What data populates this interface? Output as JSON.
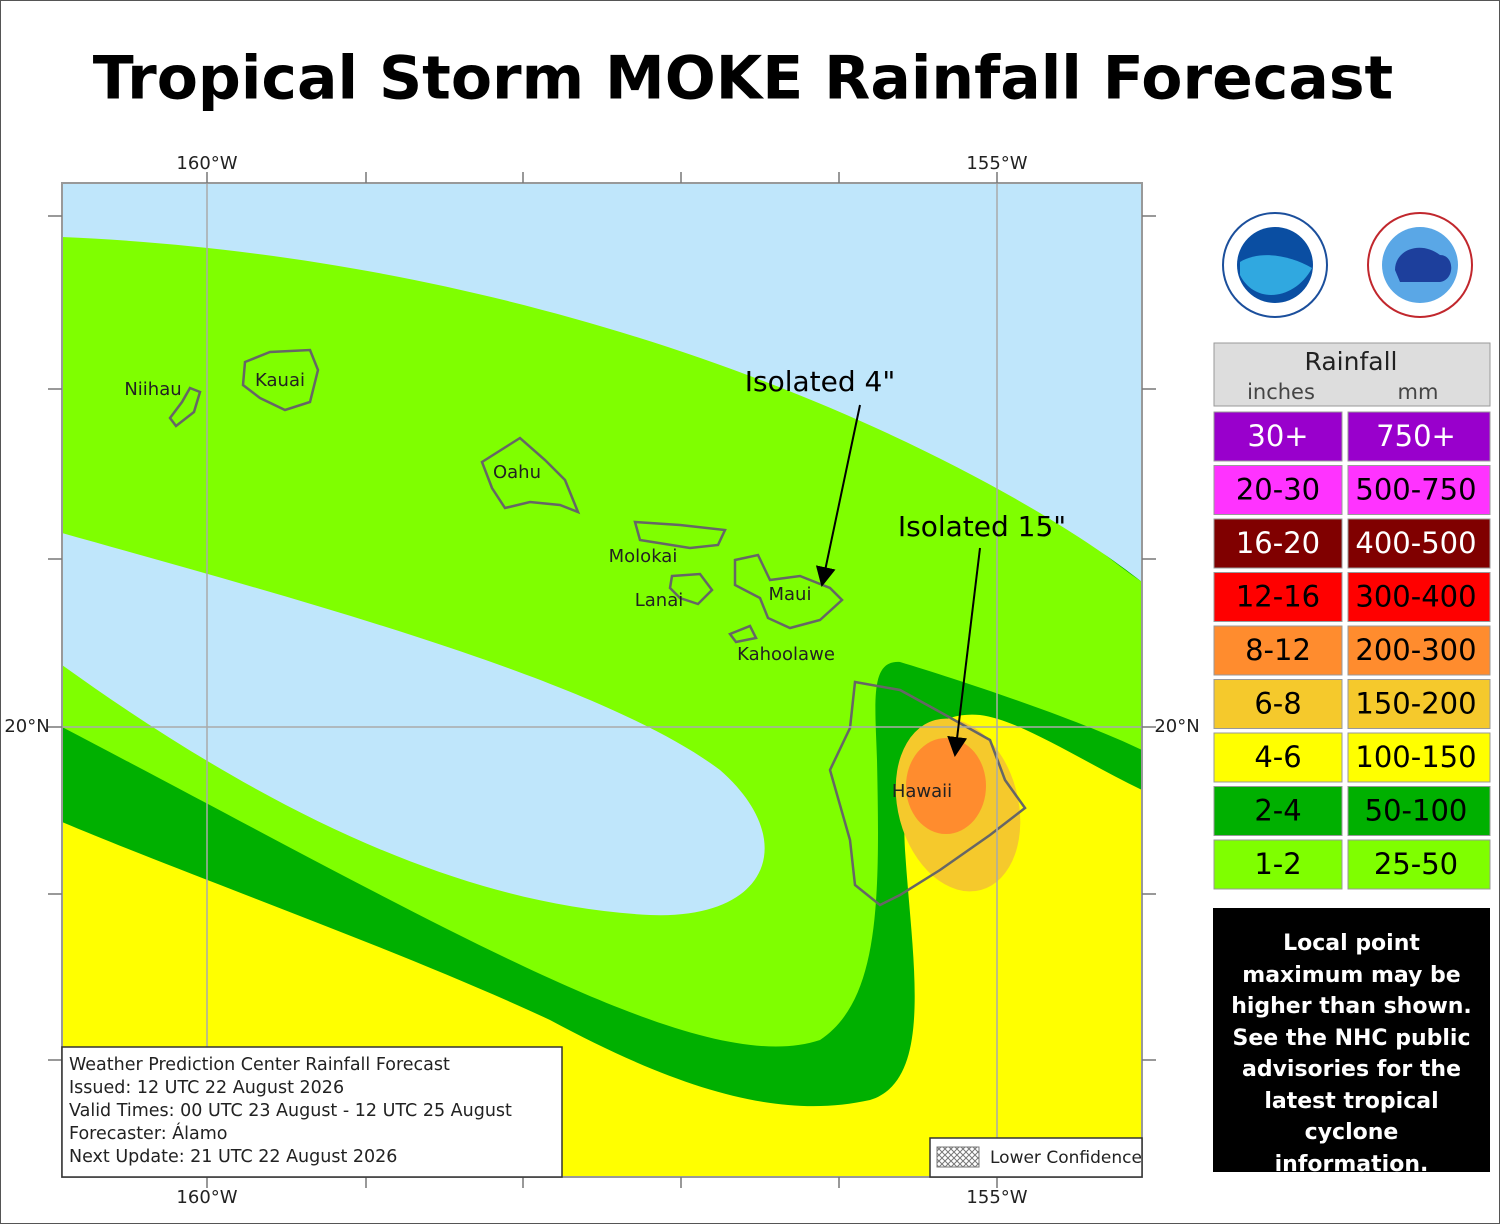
{
  "title": "Tropical Storm MOKE Rainfall Forecast",
  "axes": {
    "top": [
      "160°W",
      "155°W"
    ],
    "bottom": [
      "160°W",
      "155°W"
    ],
    "left": [
      "20°N"
    ],
    "right": [
      "20°N"
    ]
  },
  "islands": [
    "Niihau",
    "Kauai",
    "Oahu",
    "Molokai",
    "Lanai",
    "Maui",
    "Kahoolawe",
    "Hawaii"
  ],
  "annotations": [
    "Isolated 4\"",
    "Isolated 15\""
  ],
  "info": [
    "Weather Prediction Center Rainfall Forecast",
    "Issued: 12 UTC 22 August 2026",
    "Valid Times: 00 UTC 23 August - 12 UTC 25 August",
    "Forecaster: Álamo",
    "Next Update: 21 UTC 22 August 2026"
  ],
  "lower_confidence": "Lower Confidence",
  "legend": {
    "title": "Rainfall",
    "units": [
      "inches",
      "mm"
    ],
    "rows": [
      {
        "inches": "30+",
        "mm": "750+",
        "color": "#9900cc",
        "text_color": "#ffffff"
      },
      {
        "inches": "20-30",
        "mm": "500-750",
        "color": "#ff33ff",
        "text_color": "#000000"
      },
      {
        "inches": "16-20",
        "mm": "400-500",
        "color": "#800000",
        "text_color": "#ffffff"
      },
      {
        "inches": "12-16",
        "mm": "300-400",
        "color": "#ff0000",
        "text_color": "#000000"
      },
      {
        "inches": "8-12",
        "mm": "200-300",
        "color": "#ff8c2e",
        "text_color": "#000000"
      },
      {
        "inches": "6-8",
        "mm": "150-200",
        "color": "#f5c92c",
        "text_color": "#000000"
      },
      {
        "inches": "4-6",
        "mm": "100-150",
        "color": "#ffff00",
        "text_color": "#000000"
      },
      {
        "inches": "2-4",
        "mm": "50-100",
        "color": "#00b000",
        "text_color": "#000000"
      },
      {
        "inches": "1-2",
        "mm": "25-50",
        "color": "#7fff00",
        "text_color": "#000000"
      }
    ]
  },
  "note": "Local point maximum may be higher than shown. See the NHC public advisories for the latest tropical cyclone information."
}
